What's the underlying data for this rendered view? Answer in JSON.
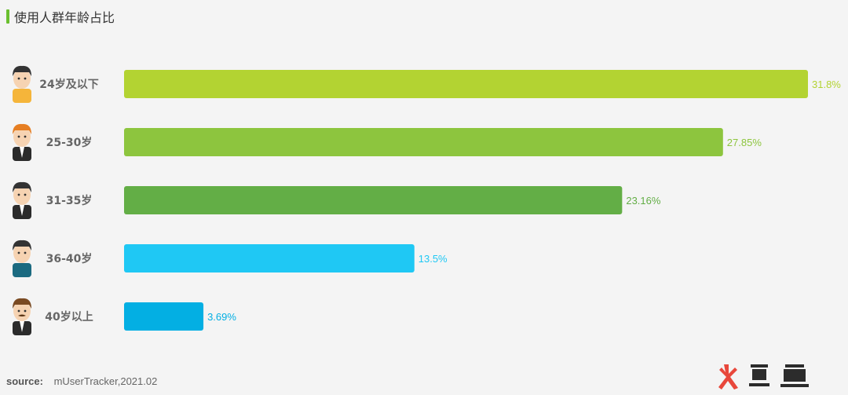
{
  "title": "使用人群年龄占比",
  "source": {
    "label": "source:",
    "value": "mUserTracker,2021.02"
  },
  "logo": {
    "text": "火鲤鱼"
  },
  "chart_data": {
    "type": "bar",
    "orientation": "horizontal",
    "categories": [
      "24岁及以下",
      "25-30岁",
      "31-35岁",
      "36-40岁",
      "40岁以上"
    ],
    "values": [
      31.8,
      27.85,
      23.16,
      13.5,
      3.69
    ],
    "value_labels": [
      "31.8%",
      "27.85%",
      "23.16%",
      "13.5%",
      "3.69%"
    ],
    "colors": [
      "#b3d332",
      "#8dc53e",
      "#63ae46",
      "#1fc8f4",
      "#03afe3"
    ],
    "label_colors": [
      "#b3d332",
      "#8dc53e",
      "#63ae46",
      "#1fc8f4",
      "#03afe3"
    ],
    "icons": [
      "boy-yellow-shirt-icon",
      "orange-hair-man-icon",
      "suit-man-icon",
      "teal-shirt-man-icon",
      "mustache-man-icon"
    ],
    "xlim": [
      0,
      31.8
    ],
    "grid": false,
    "legend": "none"
  }
}
